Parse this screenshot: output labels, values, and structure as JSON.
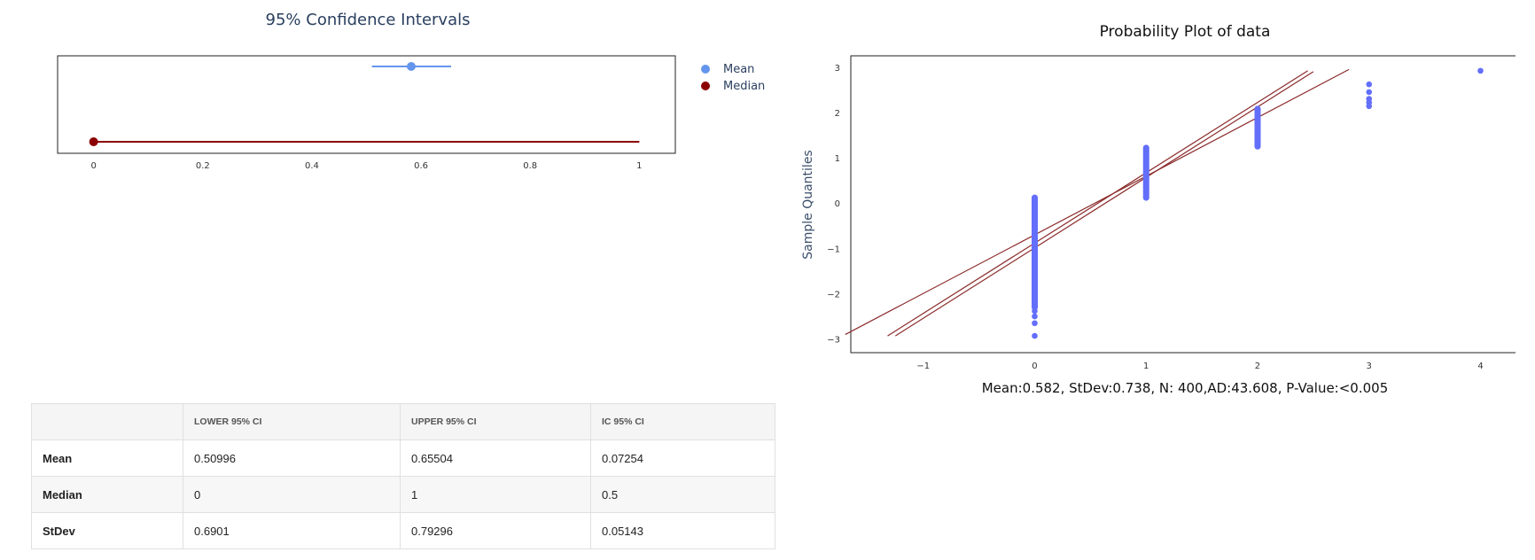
{
  "ci_chart": {
    "title": "95% Confidence Intervals",
    "legend": [
      "Mean",
      "Median"
    ],
    "colors": {
      "mean": "#6495ed",
      "median": "#8b0000"
    },
    "xlim": [
      -0.066,
      1.066
    ],
    "xticks": [
      "0",
      "0.2",
      "0.4",
      "0.6",
      "0.8",
      "1"
    ]
  },
  "prob_plot": {
    "title": "Probability Plot of data",
    "ylabel": "Sample Quantiles",
    "subtitle": "Mean:0.582, StDev:0.738, N: 400,AD:43.608, P-Value:<0.005",
    "xticks": [
      "−1",
      "0",
      "1",
      "2",
      "3",
      "4"
    ],
    "yticks": [
      "3",
      "2",
      "1",
      "0",
      "−1",
      "−2",
      "−3"
    ]
  },
  "table": {
    "headers": [
      "",
      "LOWER 95% CI",
      "UPPER 95% CI",
      "IC 95% CI"
    ],
    "rows": [
      [
        "Mean",
        "0.50996",
        "0.65504",
        "0.07254"
      ],
      [
        "Median",
        "0",
        "1",
        "0.5"
      ],
      [
        "StDev",
        "0.6901",
        "0.79296",
        "0.05143"
      ]
    ]
  },
  "chart_data": [
    {
      "type": "scatter",
      "title": "95% Confidence Intervals",
      "xlim": [
        -0.066,
        1.066
      ],
      "legend_position": "top-right",
      "series": [
        {
          "name": "Mean",
          "point": 0.582,
          "lower": 0.50996,
          "upper": 0.65504,
          "color": "#6495ed"
        },
        {
          "name": "Median",
          "point": 0,
          "lower": 0,
          "upper": 1,
          "color": "#8b0000"
        }
      ]
    },
    {
      "type": "scatter",
      "title": "Probability Plot of data",
      "ylabel": "Sample Quantiles",
      "xlim": [
        -1.65,
        4.33
      ],
      "ylim": [
        -3.3,
        3.25
      ],
      "series": [
        {
          "color": "#636efa",
          "points": [
            [
              0,
              -2.93
            ],
            [
              0,
              -2.65
            ],
            [
              0,
              -2.5
            ],
            [
              0,
              -2.38
            ],
            [
              0,
              -2.3
            ],
            [
              0,
              0.12
            ],
            [
              1,
              0.12
            ],
            [
              1,
              1.22
            ],
            [
              2,
              1.25
            ],
            [
              2,
              2.08
            ],
            [
              3,
              2.14
            ],
            [
              3,
              2.22
            ],
            [
              3,
              2.3
            ],
            [
              3,
              2.45
            ],
            [
              3,
              2.62
            ],
            [
              4,
              2.92
            ]
          ]
        }
      ],
      "reference_lines": [
        {
          "x": [
            -1.7,
            2.82
          ],
          "y": [
            -2.9,
            2.95
          ],
          "color": "#8b2a2a"
        },
        {
          "x": [
            -1.32,
            2.45
          ],
          "y": [
            -2.93,
            2.92
          ],
          "color": "#8b2a2a"
        },
        {
          "x": [
            -1.25,
            2.5
          ],
          "y": [
            -2.93,
            2.9
          ],
          "color": "#8b2a2a"
        }
      ]
    }
  ]
}
